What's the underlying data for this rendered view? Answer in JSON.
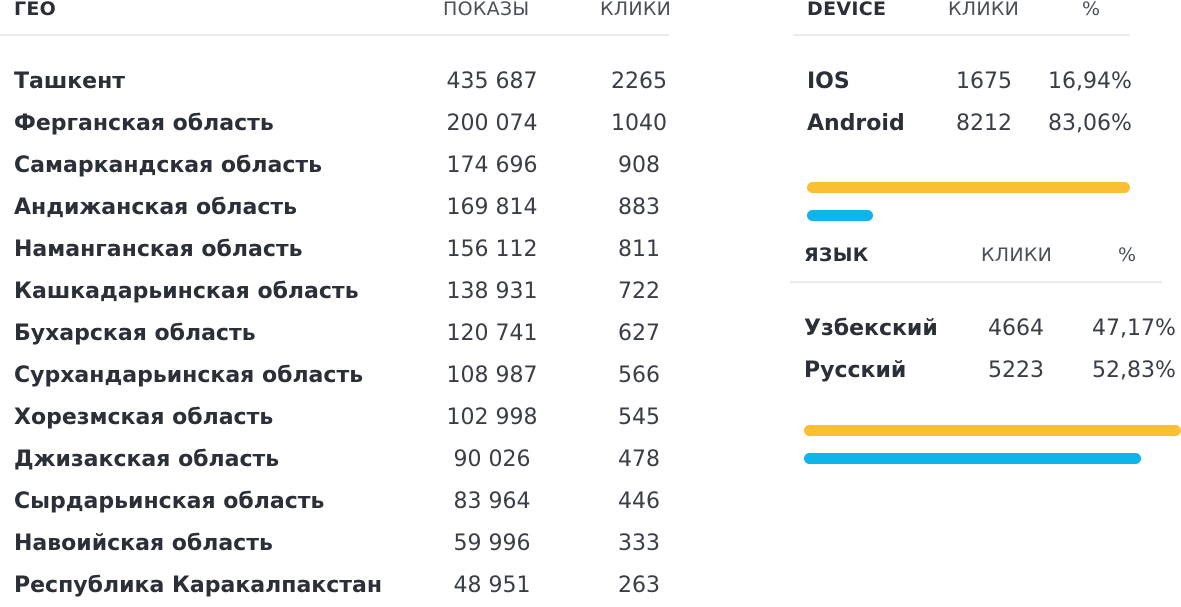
{
  "geo": {
    "header_name": "ГЕО",
    "header_impressions": "ПОКАЗЫ",
    "header_clicks": "КЛИКИ",
    "rows": [
      {
        "name": "Ташкент",
        "impressions": "435 687",
        "clicks": "2265"
      },
      {
        "name": "Ферганская область",
        "impressions": "200 074",
        "clicks": "1040"
      },
      {
        "name": "Самаркандская область",
        "impressions": "174 696",
        "clicks": "908"
      },
      {
        "name": "Андижанская область",
        "impressions": "169 814",
        "clicks": "883"
      },
      {
        "name": "Наманганская область",
        "impressions": "156 112",
        "clicks": "811"
      },
      {
        "name": "Кашкадарьинская область",
        "impressions": "138 931",
        "clicks": "722"
      },
      {
        "name": "Бухарская область",
        "impressions": "120 741",
        "clicks": "627"
      },
      {
        "name": "Сурхандарьинская область",
        "impressions": "108 987",
        "clicks": "566"
      },
      {
        "name": "Хорезмская область",
        "impressions": "102 998",
        "clicks": "545"
      },
      {
        "name": "Джизакская область",
        "impressions": "90 026",
        "clicks": "478"
      },
      {
        "name": "Сырдарьинская область",
        "impressions": "83 964",
        "clicks": "446"
      },
      {
        "name": "Навоийская область",
        "impressions": "59 996",
        "clicks": "333"
      },
      {
        "name": "Республика Каракалпакстан",
        "impressions": "48 951",
        "clicks": "263"
      }
    ]
  },
  "device": {
    "header_name": "DEVICE",
    "header_clicks": "КЛИКИ",
    "header_percent": "%",
    "rows": [
      {
        "name": "IOS",
        "clicks": "1675",
        "percent": "16,94%"
      },
      {
        "name": "Android",
        "clicks": "8212",
        "percent": "83,06%"
      }
    ],
    "bars": [
      {
        "label": "Android",
        "share": 0.8306,
        "color": "#fbbf34"
      },
      {
        "label": "IOS",
        "share": 0.1694,
        "color": "#0eb5e8"
      }
    ]
  },
  "language": {
    "header_name": "ЯЗЫК",
    "header_clicks": "КЛИКИ",
    "header_percent": "%",
    "rows": [
      {
        "name": "Узбекский",
        "clicks": "4664",
        "percent": "47,17%"
      },
      {
        "name": "Русский",
        "clicks": "5223",
        "percent": "52,83%"
      }
    ],
    "bars": [
      {
        "label": "Русский",
        "share": 0.5283,
        "color": "#fbbf34"
      },
      {
        "label": "Узбекский",
        "share": 0.4717,
        "color": "#0eb5e8"
      }
    ]
  }
}
